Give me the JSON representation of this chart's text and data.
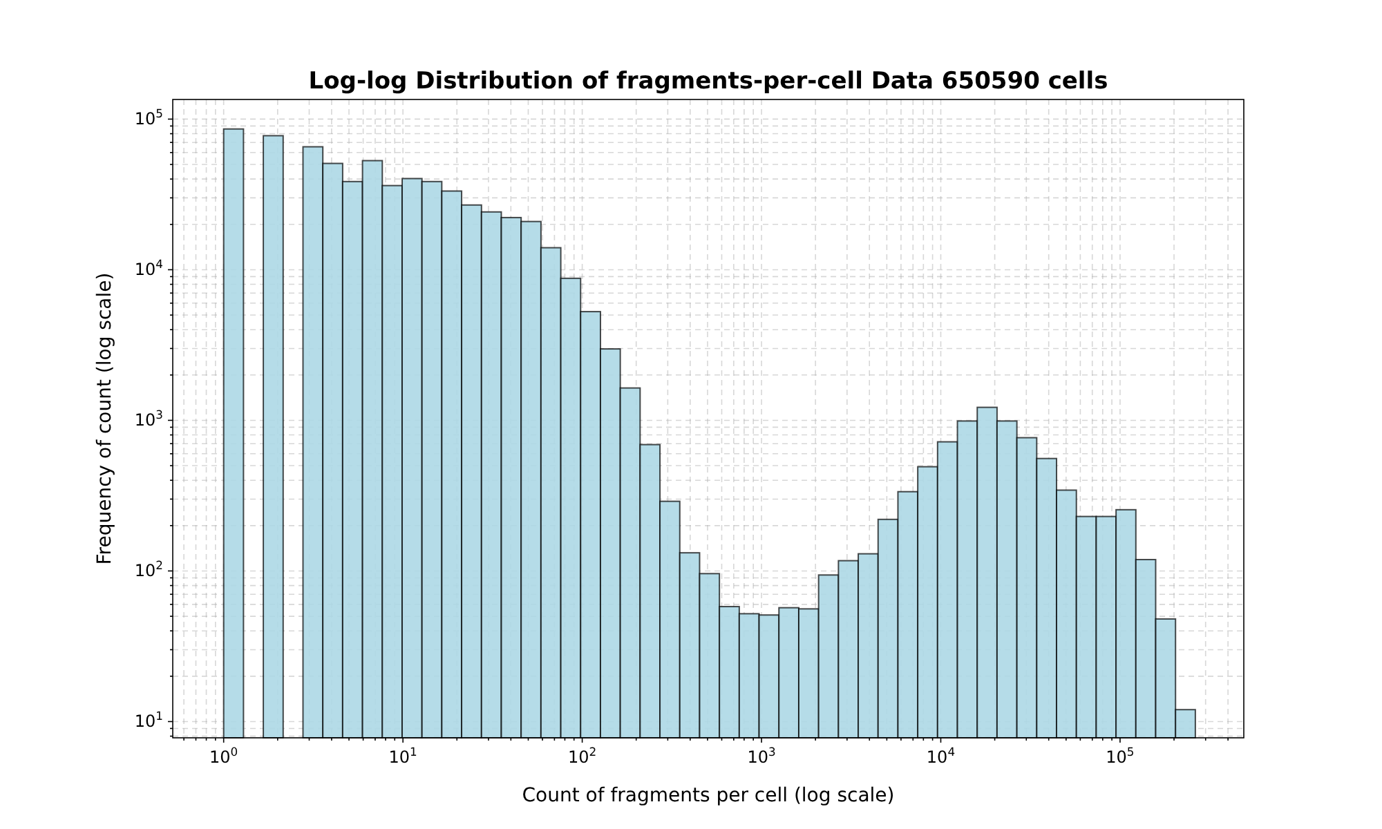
{
  "chart_data": {
    "type": "histogram",
    "title": "Log-log Distribution of fragments-per-cell Data 650590 cells",
    "xlabel": "Count of fragments per cell (log scale)",
    "ylabel": "Frequency of count (log scale)",
    "bins": [
      1,
      1.29,
      1.664,
      2.147,
      2.77,
      3.574,
      4.61,
      5.948,
      7.672,
      9.9,
      12.77,
      16.47,
      21.25,
      27.42,
      35.37,
      45.63,
      58.87,
      75.95,
      97.95,
      126.4,
      163,
      210.3,
      271.4,
      350.1,
      451.6,
      582.6,
      751.6,
      969.4,
      1251,
      1614,
      2082,
      2686,
      3465,
      4470,
      5767,
      7439,
      9594,
      12380,
      15970,
      20600,
      26580,
      34290,
      44230,
      57060,
      73610,
      94970,
      122500,
      158000,
      203900,
      263000
    ],
    "values": [
      86000,
      null,
      77600,
      null,
      65500,
      50800,
      38500,
      53000,
      36200,
      40300,
      38500,
      33300,
      26900,
      24200,
      22200,
      20900,
      14000,
      8770,
      5270,
      2980,
      1640,
      690,
      290,
      132,
      96,
      58,
      52,
      51,
      57,
      56,
      94,
      117,
      130,
      220,
      336,
      492,
      720,
      990,
      1220,
      990,
      767,
      558,
      344,
      230,
      230,
      255,
      119,
      48,
      12
    ],
    "color": "#add8e6",
    "log": "xy",
    "grid": true,
    "xlim": [
      0.52,
      490000
    ],
    "ylim": [
      7.8,
      135000
    ],
    "xticks": [
      {
        "value": 0.6,
        "label": null
      },
      {
        "value": 0.7,
        "label": null
      },
      {
        "value": 0.8,
        "label": null
      },
      {
        "value": 0.9,
        "label": null
      },
      {
        "value": 1,
        "label": "10$^{0}$"
      },
      {
        "value": 2,
        "label": null
      },
      {
        "value": 3,
        "label": null
      },
      {
        "value": 4,
        "label": null
      },
      {
        "value": 5,
        "label": null
      },
      {
        "value": 6,
        "label": null
      },
      {
        "value": 7,
        "label": null
      },
      {
        "value": 8,
        "label": null
      },
      {
        "value": 9,
        "label": null
      },
      {
        "value": 10,
        "label": "10$^{1}$"
      },
      {
        "value": 20,
        "label": null
      },
      {
        "value": 30,
        "label": null
      },
      {
        "value": 40,
        "label": null
      },
      {
        "value": 50,
        "label": null
      },
      {
        "value": 60,
        "label": null
      },
      {
        "value": 70,
        "label": null
      },
      {
        "value": 80,
        "label": null
      },
      {
        "value": 90,
        "label": null
      },
      {
        "value": 100,
        "label": "10$^{2}$"
      },
      {
        "value": 200,
        "label": null
      },
      {
        "value": 300,
        "label": null
      },
      {
        "value": 400,
        "label": null
      },
      {
        "value": 500,
        "label": null
      },
      {
        "value": 600,
        "label": null
      },
      {
        "value": 700,
        "label": null
      },
      {
        "value": 800,
        "label": null
      },
      {
        "value": 900,
        "label": null
      },
      {
        "value": 1000,
        "label": "10$^{3}$"
      },
      {
        "value": 2000,
        "label": null
      },
      {
        "value": 3000,
        "label": null
      },
      {
        "value": 4000,
        "label": null
      },
      {
        "value": 5000,
        "label": null
      },
      {
        "value": 6000,
        "label": null
      },
      {
        "value": 7000,
        "label": null
      },
      {
        "value": 8000,
        "label": null
      },
      {
        "value": 9000,
        "label": null
      },
      {
        "value": 10000,
        "label": "10$^{4}$"
      },
      {
        "value": 20000,
        "label": null
      },
      {
        "value": 30000,
        "label": null
      },
      {
        "value": 40000,
        "label": null
      },
      {
        "value": 50000,
        "label": null
      },
      {
        "value": 60000,
        "label": null
      },
      {
        "value": 70000,
        "label": null
      },
      {
        "value": 80000,
        "label": null
      },
      {
        "value": 90000,
        "label": null
      },
      {
        "value": 100000,
        "label": "10$^{5}$"
      },
      {
        "value": 200000,
        "label": null
      },
      {
        "value": 300000,
        "label": null
      },
      {
        "value": 400000,
        "label": null
      }
    ],
    "yticks": [
      {
        "value": 8,
        "label": null
      },
      {
        "value": 9,
        "label": null
      },
      {
        "value": 10,
        "label": "10$^{1}$"
      },
      {
        "value": 20,
        "label": null
      },
      {
        "value": 30,
        "label": null
      },
      {
        "value": 40,
        "label": null
      },
      {
        "value": 50,
        "label": null
      },
      {
        "value": 60,
        "label": null
      },
      {
        "value": 70,
        "label": null
      },
      {
        "value": 80,
        "label": null
      },
      {
        "value": 90,
        "label": null
      },
      {
        "value": 100,
        "label": "10$^{2}$"
      },
      {
        "value": 200,
        "label": null
      },
      {
        "value": 300,
        "label": null
      },
      {
        "value": 400,
        "label": null
      },
      {
        "value": 500,
        "label": null
      },
      {
        "value": 600,
        "label": null
      },
      {
        "value": 700,
        "label": null
      },
      {
        "value": 800,
        "label": null
      },
      {
        "value": 900,
        "label": null
      },
      {
        "value": 1000,
        "label": "10$^{3}$"
      },
      {
        "value": 2000,
        "label": null
      },
      {
        "value": 3000,
        "label": null
      },
      {
        "value": 4000,
        "label": null
      },
      {
        "value": 5000,
        "label": null
      },
      {
        "value": 6000,
        "label": null
      },
      {
        "value": 7000,
        "label": null
      },
      {
        "value": 8000,
        "label": null
      },
      {
        "value": 9000,
        "label": null
      },
      {
        "value": 10000,
        "label": "10$^{4}$"
      },
      {
        "value": 20000,
        "label": null
      },
      {
        "value": 30000,
        "label": null
      },
      {
        "value": 40000,
        "label": null
      },
      {
        "value": 50000,
        "label": null
      },
      {
        "value": 60000,
        "label": null
      },
      {
        "value": 70000,
        "label": null
      },
      {
        "value": 80000,
        "label": null
      },
      {
        "value": 90000,
        "label": null
      },
      {
        "value": 100000,
        "label": "10$^{5}$"
      }
    ]
  }
}
